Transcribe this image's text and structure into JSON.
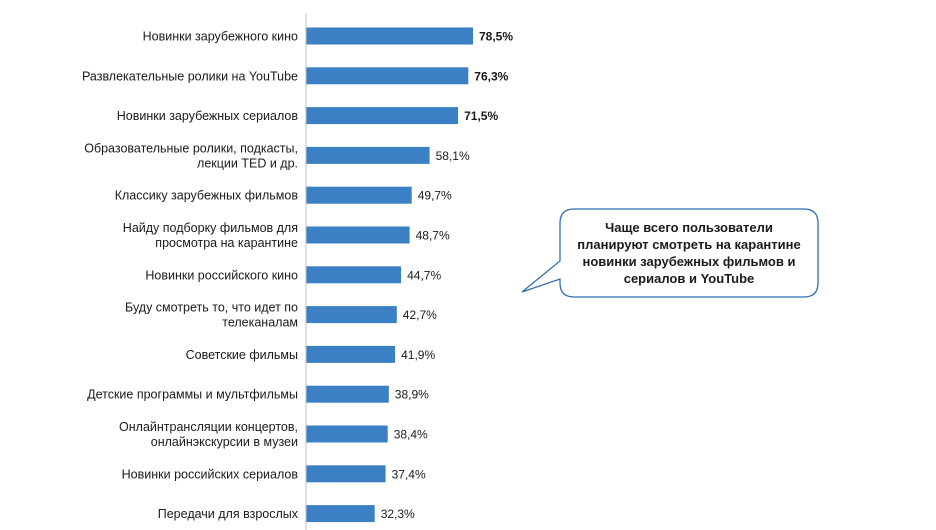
{
  "chart_data": {
    "type": "bar",
    "orientation": "horizontal",
    "categories": [
      [
        "Новинки зарубежного кино"
      ],
      [
        "Развлекательные ролики на YouTube"
      ],
      [
        "Новинки зарубежных сериалов"
      ],
      [
        "Образовательные ролики, подкасты,",
        "лекции TED и др."
      ],
      [
        "Классику зарубежных фильмов"
      ],
      [
        "Найду подборку фильмов для",
        "просмотра на карантине"
      ],
      [
        "Новинки российского кино"
      ],
      [
        "Буду смотреть то, что идет по",
        "телеканалам"
      ],
      [
        "Советские фильмы"
      ],
      [
        "Детские программы и мультфильмы"
      ],
      [
        "Онлайнтрансляции концертов,",
        "онлайнэкскурсии в музеи"
      ],
      [
        "Новинки российских сериалов"
      ],
      [
        "Передачи для взрослых"
      ]
    ],
    "values": [
      78.5,
      76.3,
      71.5,
      58.1,
      49.7,
      48.7,
      44.7,
      42.7,
      41.9,
      38.9,
      38.4,
      37.4,
      32.3
    ],
    "value_labels": [
      "78,5%",
      "76,3%",
      "71,5%",
      "58,1%",
      "49,7%",
      "48,7%",
      "44,7%",
      "42,7%",
      "41,9%",
      "38,9%",
      "38,4%",
      "37,4%",
      "32,3%"
    ],
    "bold_top": 3,
    "xlim": [
      0,
      78.5
    ],
    "bar_color": "#3b7fc4",
    "axis_color": "#bfbfbf",
    "grid": false,
    "legend": "none"
  },
  "callout": {
    "text": "Чаще всего пользователи планируют смотреть на карантине новинки зарубежных фильмов и сериалов и YouTube",
    "border_color": "#2f6fb0"
  }
}
